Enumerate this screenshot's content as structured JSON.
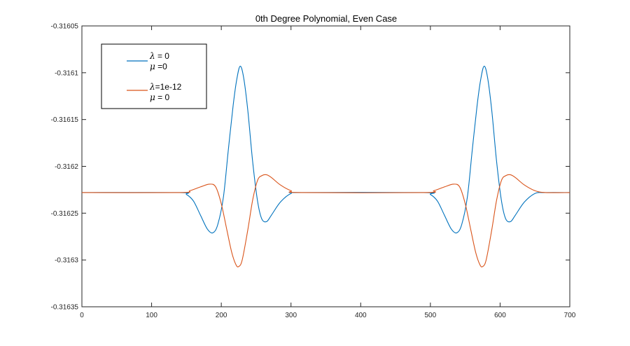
{
  "chart_data": {
    "type": "line",
    "title": "0th Degree Polynomial, Even Case",
    "xlabel": "",
    "ylabel": "",
    "xlim": [
      0,
      700
    ],
    "ylim": [
      -0.31635,
      -0.31605
    ],
    "xticks": [
      0,
      100,
      200,
      300,
      400,
      500,
      600,
      700
    ],
    "xtick_labels": [
      "0",
      "100",
      "200",
      "300",
      "400",
      "500",
      "600",
      "700"
    ],
    "yticks": [
      -0.31605,
      -0.3161,
      -0.31615,
      -0.3162,
      -0.31625,
      -0.3163,
      -0.31635
    ],
    "ytick_labels": [
      "-0.31605",
      "-0.3161",
      "-0.31615",
      "-0.3162",
      "-0.31625",
      "-0.3163",
      "-0.31635"
    ],
    "grid": false,
    "legend_position": "top-left",
    "series": [
      {
        "name": "λ = 0, μ =0",
        "legend_line1_symbol": "λ",
        "legend_line1_text": " = 0",
        "legend_line2_symbol": "μ",
        "legend_line2_text": " =0",
        "color": "#0072bd",
        "points": [
          [
            0,
            -0.316228
          ],
          [
            140,
            -0.316228
          ],
          [
            150,
            -0.31623
          ],
          [
            160,
            -0.316237
          ],
          [
            170,
            -0.316252
          ],
          [
            180,
            -0.316267
          ],
          [
            188,
            -0.316271
          ],
          [
            195,
            -0.316262
          ],
          [
            203,
            -0.316233
          ],
          [
            210,
            -0.316183
          ],
          [
            217,
            -0.316135
          ],
          [
            222,
            -0.316108
          ],
          [
            227,
            -0.316093
          ],
          [
            232,
            -0.316105
          ],
          [
            238,
            -0.31614
          ],
          [
            245,
            -0.316195
          ],
          [
            252,
            -0.316237
          ],
          [
            258,
            -0.316256
          ],
          [
            265,
            -0.316259
          ],
          [
            272,
            -0.316252
          ],
          [
            285,
            -0.316238
          ],
          [
            300,
            -0.316229
          ],
          [
            315,
            -0.316228
          ],
          [
            490,
            -0.316228
          ],
          [
            500,
            -0.31623
          ],
          [
            510,
            -0.316237
          ],
          [
            520,
            -0.316252
          ],
          [
            530,
            -0.316267
          ],
          [
            538,
            -0.316271
          ],
          [
            545,
            -0.316262
          ],
          [
            553,
            -0.316233
          ],
          [
            560,
            -0.316183
          ],
          [
            567,
            -0.316135
          ],
          [
            572,
            -0.316108
          ],
          [
            577,
            -0.316093
          ],
          [
            582,
            -0.316105
          ],
          [
            588,
            -0.31614
          ],
          [
            595,
            -0.316195
          ],
          [
            602,
            -0.316237
          ],
          [
            608,
            -0.316256
          ],
          [
            615,
            -0.316259
          ],
          [
            622,
            -0.316252
          ],
          [
            635,
            -0.316238
          ],
          [
            650,
            -0.316229
          ],
          [
            665,
            -0.316228
          ],
          [
            700,
            -0.316228
          ]
        ]
      },
      {
        "name": "λ=1e-12, μ = 0",
        "legend_line1_symbol": "λ",
        "legend_line1_text": "=1e-12",
        "legend_line2_symbol": "μ",
        "legend_line2_text": " = 0",
        "color": "#d95319",
        "points": [
          [
            0,
            -0.316228
          ],
          [
            140,
            -0.316228
          ],
          [
            155,
            -0.316226
          ],
          [
            170,
            -0.316222
          ],
          [
            183,
            -0.316219
          ],
          [
            192,
            -0.316222
          ],
          [
            200,
            -0.31624
          ],
          [
            208,
            -0.316268
          ],
          [
            215,
            -0.316292
          ],
          [
            221,
            -0.316305
          ],
          [
            225,
            -0.316307
          ],
          [
            230,
            -0.3163
          ],
          [
            238,
            -0.316268
          ],
          [
            245,
            -0.316236
          ],
          [
            252,
            -0.316215
          ],
          [
            258,
            -0.31621
          ],
          [
            265,
            -0.316209
          ],
          [
            272,
            -0.316212
          ],
          [
            285,
            -0.31622
          ],
          [
            300,
            -0.316226
          ],
          [
            315,
            -0.316228
          ],
          [
            490,
            -0.316228
          ],
          [
            505,
            -0.316226
          ],
          [
            520,
            -0.316222
          ],
          [
            533,
            -0.316219
          ],
          [
            542,
            -0.316222
          ],
          [
            550,
            -0.31624
          ],
          [
            558,
            -0.316268
          ],
          [
            565,
            -0.316292
          ],
          [
            571,
            -0.316305
          ],
          [
            575,
            -0.316307
          ],
          [
            580,
            -0.3163
          ],
          [
            588,
            -0.316268
          ],
          [
            595,
            -0.316236
          ],
          [
            602,
            -0.316215
          ],
          [
            608,
            -0.31621
          ],
          [
            615,
            -0.316209
          ],
          [
            622,
            -0.316212
          ],
          [
            635,
            -0.31622
          ],
          [
            650,
            -0.316226
          ],
          [
            665,
            -0.316228
          ],
          [
            700,
            -0.316228
          ]
        ]
      }
    ]
  }
}
